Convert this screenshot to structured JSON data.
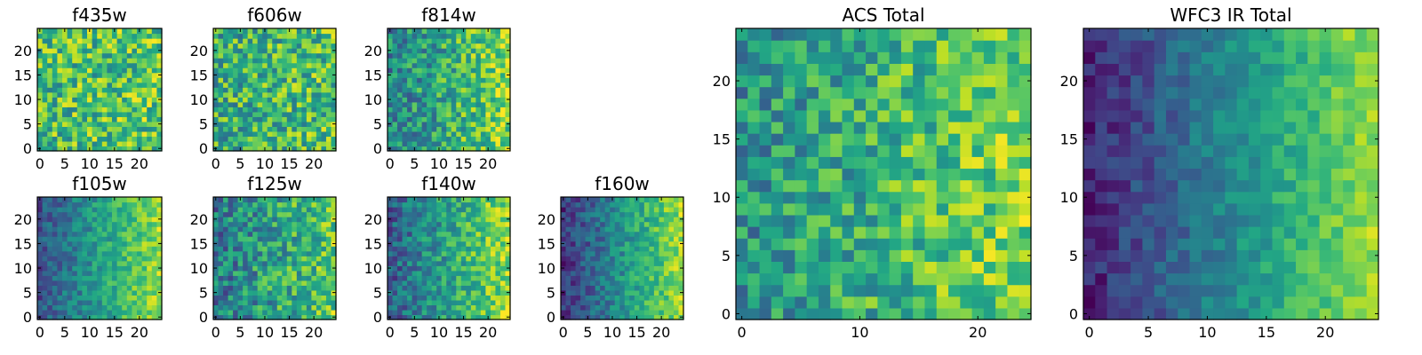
{
  "chart_data": [
    {
      "type": "heatmap",
      "title": "f435w",
      "size": 25,
      "xlim": [
        0,
        24
      ],
      "ylim": [
        0,
        24
      ],
      "xticks": [
        0,
        5,
        10,
        15,
        20
      ],
      "yticks": [
        0,
        5,
        10,
        15,
        20
      ],
      "colormap": "viridis",
      "seed": 11,
      "gradient": 0.05,
      "noise": 0.55,
      "base": 0.68
    },
    {
      "type": "heatmap",
      "title": "f606w",
      "size": 25,
      "xlim": [
        0,
        24
      ],
      "ylim": [
        0,
        24
      ],
      "xticks": [
        0,
        5,
        10,
        15,
        20
      ],
      "yticks": [
        0,
        5,
        10,
        15,
        20
      ],
      "colormap": "viridis",
      "seed": 22,
      "gradient": 0.08,
      "noise": 0.55,
      "base": 0.62
    },
    {
      "type": "heatmap",
      "title": "f814w",
      "size": 25,
      "xlim": [
        0,
        24
      ],
      "ylim": [
        0,
        24
      ],
      "xticks": [
        0,
        5,
        10,
        15,
        20
      ],
      "yticks": [
        0,
        5,
        10,
        15,
        20
      ],
      "colormap": "viridis",
      "seed": 33,
      "gradient": 0.35,
      "noise": 0.5,
      "base": 0.45
    },
    {
      "type": "heatmap",
      "title": "f105w",
      "size": 25,
      "xlim": [
        0,
        24
      ],
      "ylim": [
        0,
        24
      ],
      "xticks": [
        0,
        5,
        10,
        15,
        20
      ],
      "yticks": [
        0,
        5,
        10,
        15,
        20
      ],
      "colormap": "viridis",
      "seed": 44,
      "gradient": 0.6,
      "noise": 0.3,
      "base": 0.25
    },
    {
      "type": "heatmap",
      "title": "f125w",
      "size": 25,
      "xlim": [
        0,
        24
      ],
      "ylim": [
        0,
        24
      ],
      "xticks": [
        0,
        5,
        10,
        15,
        20
      ],
      "yticks": [
        0,
        5,
        10,
        15,
        20
      ],
      "colormap": "viridis",
      "seed": 55,
      "gradient": 0.35,
      "noise": 0.5,
      "base": 0.4
    },
    {
      "type": "heatmap",
      "title": "f140w",
      "size": 25,
      "xlim": [
        0,
        24
      ],
      "ylim": [
        0,
        24
      ],
      "xticks": [
        0,
        5,
        10,
        15,
        20
      ],
      "yticks": [
        0,
        5,
        10,
        15,
        20
      ],
      "colormap": "viridis",
      "seed": 66,
      "gradient": 0.55,
      "noise": 0.4,
      "base": 0.3
    },
    {
      "type": "heatmap",
      "title": "f160w",
      "size": 25,
      "xlim": [
        0,
        24
      ],
      "ylim": [
        0,
        24
      ],
      "xticks": [
        0,
        5,
        10,
        15,
        20
      ],
      "yticks": [
        0,
        5,
        10,
        15,
        20
      ],
      "colormap": "viridis",
      "seed": 77,
      "gradient": 0.7,
      "noise": 0.3,
      "base": 0.15
    },
    {
      "type": "heatmap",
      "title": "ACS Total",
      "size": 25,
      "xlim": [
        0,
        24
      ],
      "ylim": [
        0,
        24
      ],
      "xticks": [
        0,
        10,
        20
      ],
      "yticks": [
        0,
        5,
        10,
        15,
        20
      ],
      "colormap": "viridis",
      "seed": 88,
      "gradient": 0.3,
      "noise": 0.45,
      "base": 0.5
    },
    {
      "type": "heatmap",
      "title": "WFC3 IR Total",
      "size": 25,
      "xlim": [
        0,
        24
      ],
      "ylim": [
        0,
        24
      ],
      "xticks": [
        0,
        5,
        10,
        15,
        20
      ],
      "yticks": [
        0,
        5,
        10,
        15,
        20
      ],
      "colormap": "viridis",
      "seed": 99,
      "gradient": 0.75,
      "noise": 0.22,
      "base": 0.1
    }
  ]
}
